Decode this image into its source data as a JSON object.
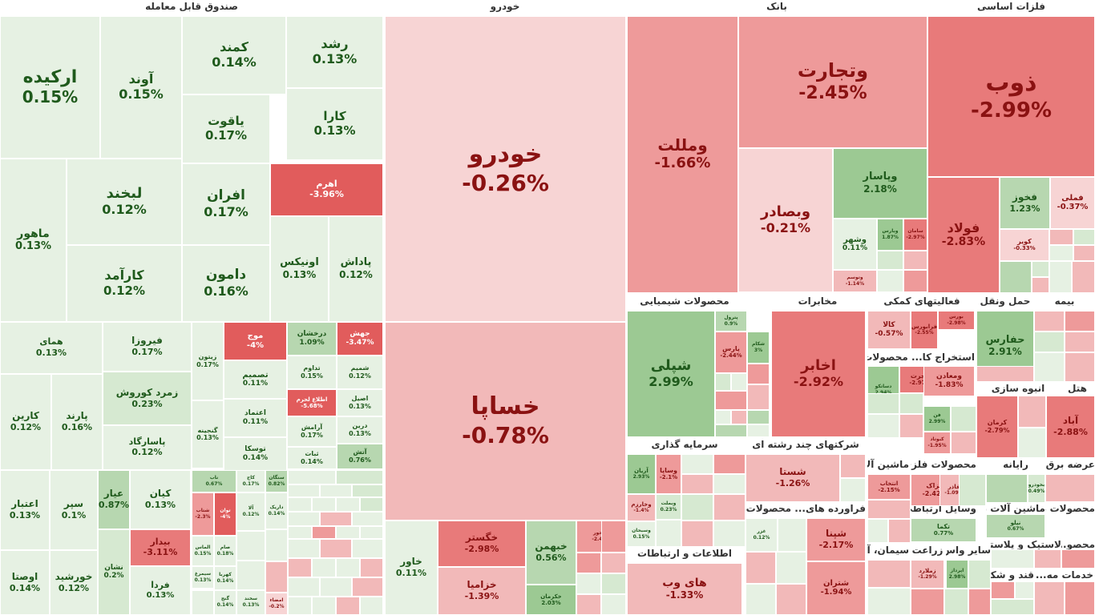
{
  "colors": {
    "pos1": "#e6f1e3",
    "pos2": "#d6e9d1",
    "pos3": "#b7d7b0",
    "pos4": "#9cc993",
    "neg1": "#f7d4d4",
    "neg2": "#f2b9b9",
    "neg3": "#ee9a9a",
    "neg4": "#e87a7a",
    "neg5": "#e15c5c",
    "text_pos": "#1f5a1c",
    "text_neg": "#8a1212"
  },
  "chart_data": {
    "type": "treemap",
    "sectors": [
      {
        "name": "صندوق قابل معامله"
      },
      {
        "name": "خودرو"
      },
      {
        "name": "بانک"
      },
      {
        "name": "فلزات اساسی"
      },
      {
        "name": "محصولات شیمیایی"
      },
      {
        "name": "مخابرات"
      },
      {
        "name": "فعالیتهای کمکی"
      },
      {
        "name": "حمل ونقل"
      },
      {
        "name": "بیمه"
      },
      {
        "name": "استخراج کا... محصولات ..."
      },
      {
        "name": "انبوه سازی"
      },
      {
        "name": "هتل"
      },
      {
        "name": "سرمایه گذاری"
      },
      {
        "name": "شرکتهای چند رشته ای"
      },
      {
        "name": "ماشین آلات"
      },
      {
        "name": "محصولات فلزی"
      },
      {
        "name": "رایانه"
      },
      {
        "name": "عرضه برق، گاز"
      },
      {
        "name": "فراورده های... محصولات ..."
      },
      {
        "name": "وسایل ارتباطی"
      },
      {
        "name": "ماشین آلات برقی"
      },
      {
        "name": "محصولات غیر..."
      },
      {
        "name": "اطلاعات و ارتباطات"
      },
      {
        "name": "سیمان، آه..."
      },
      {
        "name": "زراعت"
      },
      {
        "name": "سایر واس..."
      },
      {
        "name": "لاستیک و پلاستیک"
      },
      {
        "name": "قند و شکر"
      },
      {
        "name": "تامین مالی"
      },
      {
        "name": "محصو..."
      },
      {
        "name": "خدمات مه..."
      }
    ],
    "tiles": [
      {
        "name": "ارکیده",
        "change": "0.15%",
        "value": 0.15
      },
      {
        "name": "آوند",
        "change": "0.15%",
        "value": 0.15
      },
      {
        "name": "کمند",
        "change": "0.14%",
        "value": 0.14
      },
      {
        "name": "رشد",
        "change": "0.13%",
        "value": 0.13
      },
      {
        "name": "یاقوت",
        "change": "0.17%",
        "value": 0.17
      },
      {
        "name": "کارا",
        "change": "0.13%",
        "value": 0.13
      },
      {
        "name": "لبخند",
        "change": "0.12%",
        "value": 0.12
      },
      {
        "name": "افران",
        "change": "0.17%",
        "value": 0.17
      },
      {
        "name": "اهرم",
        "change": "-3.96%",
        "value": -3.96
      },
      {
        "name": "ماهور",
        "change": "0.13%",
        "value": 0.13
      },
      {
        "name": "کارآمد",
        "change": "0.12%",
        "value": 0.12
      },
      {
        "name": "دامون",
        "change": "0.16%",
        "value": 0.16
      },
      {
        "name": "اونیکس",
        "change": "0.13%",
        "value": 0.13
      },
      {
        "name": "پاداش",
        "change": "0.12%",
        "value": 0.12
      },
      {
        "name": "همای",
        "change": "0.13%",
        "value": 0.13
      },
      {
        "name": "فیروزا",
        "change": "0.17%",
        "value": 0.17
      },
      {
        "name": "زیتون",
        "change": "0.17%",
        "value": 0.17
      },
      {
        "name": "موج",
        "change": "-4%",
        "value": -4
      },
      {
        "name": "درخشان",
        "change": "1.09%",
        "value": 1.09
      },
      {
        "name": "جهش",
        "change": "-3.47%",
        "value": -3.47
      },
      {
        "name": "تداوم",
        "change": "0.15%",
        "value": 0.15
      },
      {
        "name": "شمیم",
        "change": "0.12%",
        "value": 0.12
      },
      {
        "name": "تصمیم",
        "change": "0.11%",
        "value": 0.11
      },
      {
        "name": "زمرد کوروش",
        "change": "0.23%",
        "value": 0.23
      },
      {
        "name": "اطلاع لحرم",
        "change": "-5.68%",
        "value": -5.68
      },
      {
        "name": "اصیل",
        "change": "0.13%",
        "value": 0.13
      },
      {
        "name": "کارین",
        "change": "0.12%",
        "value": 0.12
      },
      {
        "name": "پارند",
        "change": "0.16%",
        "value": 0.16
      },
      {
        "name": "اعتماد",
        "change": "0.11%",
        "value": 0.11
      },
      {
        "name": "گنجینه",
        "change": "0.13%",
        "value": 0.13
      },
      {
        "name": "آرامش",
        "change": "0.17%",
        "value": 0.17
      },
      {
        "name": "درین",
        "change": "0.13%",
        "value": 0.13
      },
      {
        "name": "پاسارگاد",
        "change": "0.12%",
        "value": 0.12
      },
      {
        "name": "توسکا",
        "change": "0.14%",
        "value": 0.14
      },
      {
        "name": "ثبات",
        "change": "0.14%",
        "value": 0.14
      },
      {
        "name": "آتش",
        "change": "0.76%",
        "value": 0.76
      },
      {
        "name": "اعتبار",
        "change": "0.13%",
        "value": 0.13
      },
      {
        "name": "سپر",
        "change": "0.1%",
        "value": 0.1
      },
      {
        "name": "عیار",
        "change": "0.87%",
        "value": 0.87
      },
      {
        "name": "کیان",
        "change": "0.13%",
        "value": 0.13
      },
      {
        "name": "نشان",
        "change": "0.2%",
        "value": 0.2
      },
      {
        "name": "بیدار",
        "change": "-3.11%",
        "value": -3.11
      },
      {
        "name": "اوصتا",
        "change": "0.14%",
        "value": 0.14
      },
      {
        "name": "خورشید",
        "change": "0.12%",
        "value": 0.12
      },
      {
        "name": "فردا",
        "change": "0.13%",
        "value": 0.13
      },
      {
        "name": "ناب",
        "change": "0.67%",
        "value": 0.67
      },
      {
        "name": "کاج",
        "change": "0.17%",
        "value": 0.17
      },
      {
        "name": "سنگان",
        "change": "0.82%",
        "value": 0.82
      },
      {
        "name": "شتاب",
        "change": "-2.3%",
        "value": -2.3
      },
      {
        "name": "توان",
        "change": "-4%",
        "value": -4
      },
      {
        "name": "آلا",
        "change": "0.12%",
        "value": 0.12
      },
      {
        "name": "داریک",
        "change": "0.14%",
        "value": 0.14
      },
      {
        "name": "الماس",
        "change": "0.15%",
        "value": 0.15
      },
      {
        "name": "صام",
        "change": "0.18%",
        "value": 0.18
      },
      {
        "name": "کهربا",
        "change": "0.14%",
        "value": 0.14
      },
      {
        "name": "سیمرغ",
        "change": "0.13%",
        "value": 0.13
      },
      {
        "name": "گنج",
        "change": "0.14%",
        "value": 0.14
      },
      {
        "name": "امضاء",
        "change": "-0.2%",
        "value": -0.2
      },
      {
        "name": "سخند",
        "change": "0.13%",
        "value": 0.13
      },
      {
        "name": "خودرو",
        "change": "-0.26%",
        "value": -0.26
      },
      {
        "name": "خساپا",
        "change": "-0.78%",
        "value": -0.78
      },
      {
        "name": "خاور",
        "change": "0.11%",
        "value": 0.11
      },
      {
        "name": "خگستر",
        "change": "-2.98%",
        "value": -2.98
      },
      {
        "name": "خزامیا",
        "change": "-1.39%",
        "value": -1.39
      },
      {
        "name": "خبهمن",
        "change": "0.56%",
        "value": 0.56
      },
      {
        "name": "خکرمان",
        "change": "2.03%",
        "value": 2.03
      },
      {
        "name": "خمحور",
        "change": "-2.45%",
        "value": -2.45
      },
      {
        "name": "ومللت",
        "change": "-1.66%",
        "value": -1.66
      },
      {
        "name": "وبملت",
        "change": "-1.66%",
        "value": -1.66
      },
      {
        "name": "وتجارت",
        "change": "-2.45%",
        "value": -2.45
      },
      {
        "name": "ذوب",
        "change": "-2.99%",
        "value": -2.99
      },
      {
        "name": "وپاسار",
        "change": "2.18%",
        "value": 2.18
      },
      {
        "name": "وبصادر",
        "change": "-0.21%",
        "value": -0.21
      },
      {
        "name": "وشهر",
        "change": "0.11%",
        "value": 0.11
      },
      {
        "name": "وبارس",
        "change": "1.87%",
        "value": 1.87
      },
      {
        "name": "سامان",
        "change": "-2.97%",
        "value": -2.97
      },
      {
        "name": "وتوسم",
        "change": "-1.14%",
        "value": -1.14
      },
      {
        "name": "فولاد",
        "change": "-2.83%",
        "value": -2.83
      },
      {
        "name": "فخوز",
        "change": "1.23%",
        "value": 1.23
      },
      {
        "name": "فملی",
        "change": "-0.37%",
        "value": -0.37
      },
      {
        "name": "کویر",
        "change": "-0.33%",
        "value": -0.33
      },
      {
        "name": "حفارس",
        "change": "2.91%",
        "value": 2.91
      },
      {
        "name": "شپلی",
        "change": "2.99%",
        "value": 2.99
      },
      {
        "name": "اخابر",
        "change": "-2.92%",
        "value": -2.92
      },
      {
        "name": "کالا",
        "change": "-0.57%",
        "value": -0.57
      },
      {
        "name": "فرابورس",
        "change": "-2.55%",
        "value": -2.55
      },
      {
        "name": "بورس",
        "change": "-2.98%",
        "value": -2.98
      },
      {
        "name": "پترول",
        "change": "0.9%",
        "value": 0.9
      },
      {
        "name": "پارس",
        "change": "-2.44%",
        "value": -2.44
      },
      {
        "name": "شکام",
        "change": "3%",
        "value": 3
      },
      {
        "name": "هجرت",
        "change": "-2.97%",
        "value": -2.97
      },
      {
        "name": "ومعادن",
        "change": "-1.83%",
        "value": -1.83
      },
      {
        "name": "دساتکو",
        "change": "2.94%",
        "value": 2.94
      },
      {
        "name": "فن",
        "change": "2.99%",
        "value": 2.99
      },
      {
        "name": "کبوتاد",
        "change": "-1.95%",
        "value": -1.95
      },
      {
        "name": "کرمان",
        "change": "-2.79%",
        "value": -2.79
      },
      {
        "name": "آباد",
        "change": "-2.88%",
        "value": -2.88
      },
      {
        "name": "آریان",
        "change": "2.93%",
        "value": 2.93
      },
      {
        "name": "وساپا",
        "change": "-2.1%",
        "value": -2.1
      },
      {
        "name": "وخارزم",
        "change": "-1.4%",
        "value": -1.4
      },
      {
        "name": "وبملت",
        "change": "0.23%",
        "value": 0.23
      },
      {
        "name": "وسبحان",
        "change": "0.15%",
        "value": 0.15
      },
      {
        "name": "شستا",
        "change": "-1.26%",
        "value": -1.26
      },
      {
        "name": "شپنا",
        "change": "-2.17%",
        "value": -2.17
      },
      {
        "name": "شتران",
        "change": "-1.94%",
        "value": -1.94
      },
      {
        "name": "غزر",
        "change": "0.12%",
        "value": 0.12
      },
      {
        "name": "انتخاب",
        "change": "-2.15%",
        "value": -2.15
      },
      {
        "name": "فزاک",
        "change": "-2.42%",
        "value": -2.42
      },
      {
        "name": "فاذر",
        "change": "-1.09%",
        "value": -1.09
      },
      {
        "name": "چفن",
        "change": "-0.35%",
        "value": -0.35
      },
      {
        "name": "بخودرو",
        "change": "0.49%",
        "value": 0.49
      },
      {
        "name": "تکما",
        "change": "0.77%",
        "value": 0.77
      },
      {
        "name": "نیلو",
        "change": "0.67%",
        "value": 0.67
      },
      {
        "name": "های وب",
        "change": "-1.33%",
        "value": -1.33
      },
      {
        "name": "زملارد",
        "change": "-1.29%",
        "value": -1.29
      },
      {
        "name": "اپرداز",
        "change": "2.98%",
        "value": 2.98
      }
    ]
  }
}
